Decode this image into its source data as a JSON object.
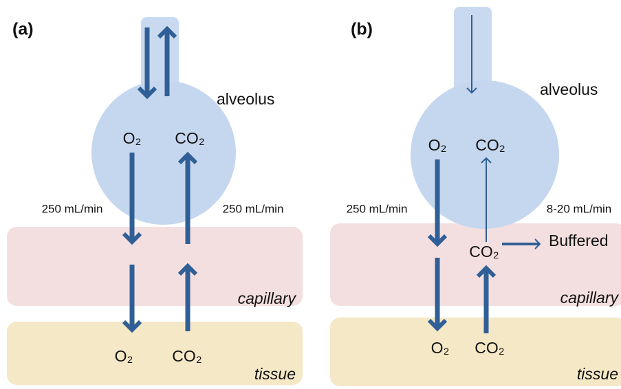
{
  "panels": [
    {
      "label": "(a)",
      "alveolus": "alveolus",
      "alveolus_o2": "O₂",
      "alveolus_co2": "CO₂",
      "flow_left": "250 mL/min",
      "flow_right": "250 mL/min",
      "capillary": "capillary",
      "tissue": "tissue",
      "tissue_o2": "O₂",
      "tissue_co2": "CO₂"
    },
    {
      "label": "(b)",
      "alveolus": "alveolus",
      "alveolus_o2": "O₂",
      "alveolus_co2": "CO₂",
      "flow_left": "250 mL/min",
      "flow_right": "8-20 mL/min",
      "capillary_co2": "CO₂",
      "buffered": "Buffered",
      "capillary": "capillary",
      "tissue": "tissue",
      "tissue_o2": "O₂",
      "tissue_co2": "CO₂"
    }
  ]
}
